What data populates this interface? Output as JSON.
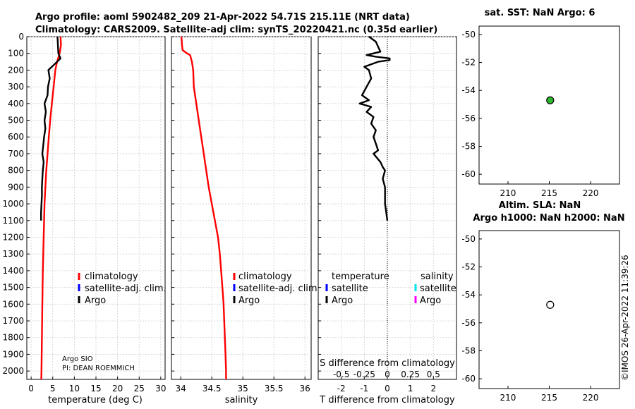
{
  "main_title": {
    "line1": "Argo profile: aoml 5902482_209 21-Apr-2022 54.71S 215.11E (NRT data)",
    "line2": "Climatology: CARS2009. Satellite-adj clim: synTS_20220421.nc (0.35d earlier)"
  },
  "credit": "©IMOS 26-Apr-2022 11:39:26",
  "float_info": {
    "line1": "Argo SIO",
    "line2": "PI: DEAN ROEMMICH"
  },
  "colors": {
    "climatology": "#ff0000",
    "satellite": "#0000ff",
    "argo": "#000000",
    "sat_salinity": "#00e5ee",
    "argo_salinity": "#ff00ff",
    "marker_fill": "#2eb82e"
  },
  "chart_data": [
    {
      "name": "temperature-profile",
      "type": "line",
      "xlabel": "temperature (deg C)",
      "ylabel": "",
      "xlim": [
        -1,
        31
      ],
      "ylim": [
        2050,
        0
      ],
      "x_ticks": [
        0,
        5,
        10,
        15,
        20,
        25,
        30
      ],
      "y_ticks": [
        0,
        100,
        200,
        300,
        400,
        500,
        600,
        700,
        800,
        900,
        1000,
        1100,
        1200,
        1300,
        1400,
        1500,
        1600,
        1700,
        1800,
        1900,
        2000
      ],
      "legend": [
        "climatology",
        "satellite-adj. clim.",
        "Argo"
      ],
      "series": [
        {
          "name": "climatology",
          "color": "#ff0000",
          "points": [
            [
              6.8,
              0
            ],
            [
              6.9,
              50
            ],
            [
              6.6,
              100
            ],
            [
              6.0,
              150
            ],
            [
              5.6,
              200
            ],
            [
              5.2,
              300
            ],
            [
              4.8,
              400
            ],
            [
              4.4,
              500
            ],
            [
              4.1,
              600
            ],
            [
              3.8,
              700
            ],
            [
              3.5,
              800
            ],
            [
              3.3,
              900
            ],
            [
              3.1,
              1000
            ],
            [
              2.9,
              1200
            ],
            [
              2.7,
              1400
            ],
            [
              2.6,
              1600
            ],
            [
              2.5,
              1800
            ],
            [
              2.4,
              2000
            ],
            [
              2.35,
              2050
            ]
          ]
        },
        {
          "name": "Argo",
          "color": "#000000",
          "points": [
            [
              6.1,
              0
            ],
            [
              6.2,
              50
            ],
            [
              6.3,
              100
            ],
            [
              6.8,
              130
            ],
            [
              5.2,
              170
            ],
            [
              4.0,
              200
            ],
            [
              4.3,
              250
            ],
            [
              3.9,
              300
            ],
            [
              3.8,
              350
            ],
            [
              3.1,
              400
            ],
            [
              3.4,
              450
            ],
            [
              3.1,
              500
            ],
            [
              3.3,
              550
            ],
            [
              3.0,
              600
            ],
            [
              2.8,
              650
            ],
            [
              2.6,
              700
            ],
            [
              2.9,
              750
            ],
            [
              2.7,
              800
            ],
            [
              2.6,
              850
            ],
            [
              2.5,
              900
            ],
            [
              2.5,
              950
            ],
            [
              2.4,
              1000
            ],
            [
              2.3,
              1050
            ],
            [
              2.3,
              1100
            ]
          ]
        }
      ]
    },
    {
      "name": "salinity-profile",
      "type": "line",
      "xlabel": "salinity",
      "xlim": [
        33.85,
        36.1
      ],
      "ylim": [
        2050,
        0
      ],
      "x_ticks": [
        34,
        34.5,
        35,
        35.5,
        36
      ],
      "x_tick_labels": [
        "34",
        "34.5",
        "35",
        "35.5",
        "36"
      ],
      "legend": [
        "climatology",
        "satellite-adj. clim.",
        "Argo"
      ],
      "series": [
        {
          "name": "climatology",
          "color": "#ff0000",
          "points": [
            [
              34.01,
              0
            ],
            [
              34.02,
              50
            ],
            [
              34.03,
              80
            ],
            [
              34.1,
              100
            ],
            [
              34.15,
              110
            ],
            [
              34.18,
              150
            ],
            [
              34.2,
              200
            ],
            [
              34.21,
              300
            ],
            [
              34.25,
              400
            ],
            [
              34.29,
              500
            ],
            [
              34.33,
              600
            ],
            [
              34.37,
              700
            ],
            [
              34.41,
              800
            ],
            [
              34.45,
              900
            ],
            [
              34.5,
              1000
            ],
            [
              34.55,
              1100
            ],
            [
              34.6,
              1200
            ],
            [
              34.63,
              1300
            ],
            [
              34.65,
              1400
            ],
            [
              34.67,
              1500
            ],
            [
              34.69,
              1600
            ],
            [
              34.7,
              1700
            ],
            [
              34.71,
              1800
            ],
            [
              34.72,
              1900
            ],
            [
              34.73,
              2000
            ],
            [
              34.73,
              2050
            ]
          ]
        }
      ]
    },
    {
      "name": "difference-profile",
      "type": "line",
      "xlabel": "T difference from climatology",
      "xlabel_top": "S difference from climatology",
      "xlim": [
        -3,
        3
      ],
      "ylim": [
        2050,
        0
      ],
      "x_ticks": [
        -2,
        -1,
        0,
        1,
        2
      ],
      "x_tick_labels": [
        "-2",
        "-1",
        "0",
        "1",
        "2"
      ],
      "s_ticks": [
        -0.5,
        -0.25,
        0,
        0.25,
        0.5
      ],
      "s_tick_labels": [
        "-0.5",
        "-0.25",
        "0",
        "0.25",
        "0.5"
      ],
      "legend_temperature_title": "temperature",
      "legend_salinity_title": "salinity",
      "legend_temperature": [
        "satellite",
        "Argo"
      ],
      "legend_salinity": [
        "satellite",
        "Argo"
      ],
      "series": [
        {
          "name": "T difference (Argo)",
          "color": "#000000",
          "points": [
            [
              -0.8,
              0
            ],
            [
              -0.5,
              30
            ],
            [
              -0.4,
              60
            ],
            [
              -0.3,
              90
            ],
            [
              -0.9,
              110
            ],
            [
              -0.5,
              120
            ],
            [
              0.1,
              130
            ],
            [
              0.1,
              140
            ],
            [
              -0.4,
              150
            ],
            [
              -1.0,
              180
            ],
            [
              -0.8,
              200
            ],
            [
              -0.7,
              250
            ],
            [
              -0.9,
              300
            ],
            [
              -1.1,
              350
            ],
            [
              -0.8,
              380
            ],
            [
              -1.2,
              400
            ],
            [
              -0.7,
              420
            ],
            [
              -0.9,
              450
            ],
            [
              -0.6,
              480
            ],
            [
              -0.7,
              520
            ],
            [
              -0.5,
              560
            ],
            [
              -0.6,
              600
            ],
            [
              -0.5,
              640
            ],
            [
              -0.4,
              680
            ],
            [
              -0.6,
              700
            ],
            [
              -0.3,
              750
            ],
            [
              -0.2,
              780
            ],
            [
              -0.1,
              800
            ],
            [
              -0.2,
              850
            ],
            [
              -0.1,
              900
            ],
            [
              -0.1,
              950
            ],
            [
              -0.1,
              1000
            ],
            [
              -0.05,
              1050
            ],
            [
              0.0,
              1100
            ]
          ]
        }
      ]
    },
    {
      "name": "sst-map",
      "type": "scatter",
      "title": "sat. SST: NaN Argo: 6",
      "xlim": [
        206.5,
        223.5
      ],
      "ylim": [
        -60.7,
        -49.4
      ],
      "x_ticks": [
        210,
        215,
        220
      ],
      "y_ticks": [
        -50,
        -52,
        -54,
        -56,
        -58,
        -60
      ],
      "points": [
        [
          215.11,
          -54.71
        ]
      ],
      "marker": "filled"
    },
    {
      "name": "sla-map",
      "type": "scatter",
      "title_line1": "Altim. SLA: NaN",
      "title_line2": "Argo h1000: NaN h2000: NaN",
      "xlim": [
        206.5,
        223.5
      ],
      "ylim": [
        -60.7,
        -49.4
      ],
      "x_ticks": [
        210,
        215,
        220
      ],
      "y_ticks": [
        -50,
        -52,
        -54,
        -56,
        -58,
        -60
      ],
      "points": [
        [
          215.11,
          -54.71
        ]
      ],
      "marker": "open"
    }
  ]
}
